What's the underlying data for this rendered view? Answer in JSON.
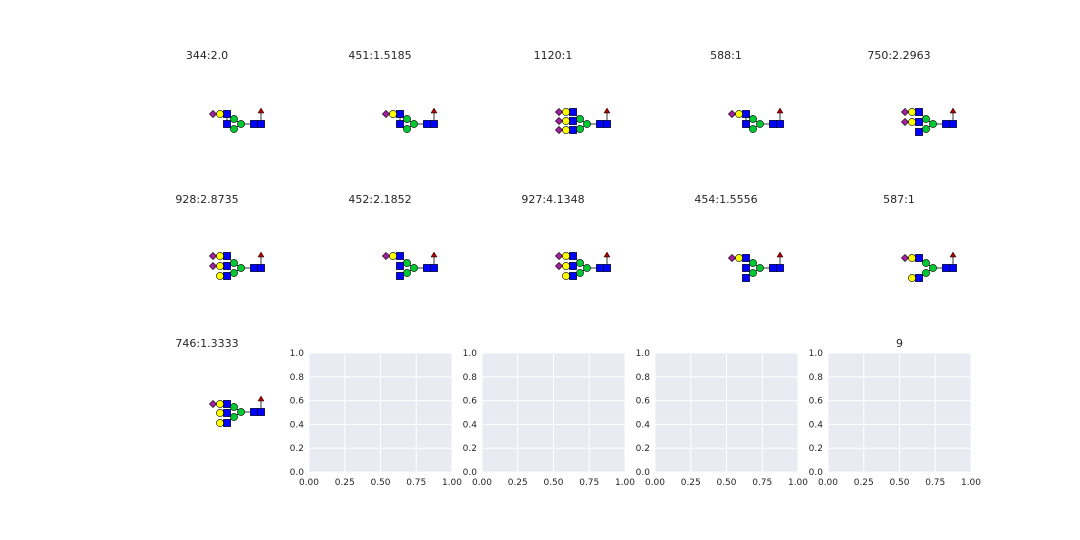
{
  "figure": {
    "panels": [
      {
        "title": "344:2.0",
        "glycan": "A"
      },
      {
        "title": "451:1.5185",
        "glycan": "A"
      },
      {
        "title": "1120:1",
        "glycan": "B"
      },
      {
        "title": "588:1",
        "glycan": "A"
      },
      {
        "title": "750:2.2963",
        "glycan": "C"
      },
      {
        "title": "928:2.8735",
        "glycan": "D"
      },
      {
        "title": "452:2.1852",
        "glycan": "E"
      },
      {
        "title": "927:4.1348",
        "glycan": "F"
      },
      {
        "title": "454:1.5556",
        "glycan": "G"
      },
      {
        "title": "587:1",
        "glycan": "H"
      },
      {
        "title": "746:1.3333",
        "glycan": "I"
      }
    ],
    "colors": {
      "sialic_acid": "#a020a0",
      "galactose": "#ffff00",
      "glcnac": "#0000ff",
      "mannose": "#00c832",
      "fucose_arrow": "#b00000",
      "axes_bg": "#eaeaf2",
      "grid": "#ffffff",
      "text": "#262626"
    }
  },
  "chart_data": [
    {
      "type": "scatter",
      "title": "",
      "xlabel": "",
      "ylabel": "",
      "xlim": [
        0,
        1
      ],
      "ylim": [
        0,
        1
      ],
      "grid": true,
      "xticks": [
        "0.00",
        "0.25",
        "0.50",
        "0.75",
        "1.00"
      ],
      "yticks": [
        "0.0",
        "0.2",
        "0.4",
        "0.6",
        "0.8",
        "1.0"
      ],
      "series": []
    },
    {
      "type": "scatter",
      "title": "",
      "xlabel": "",
      "ylabel": "",
      "xlim": [
        0,
        1
      ],
      "ylim": [
        0,
        1
      ],
      "grid": true,
      "xticks": [
        "0.00",
        "0.25",
        "0.50",
        "0.75",
        "1.00"
      ],
      "yticks": [
        "0.0",
        "0.2",
        "0.4",
        "0.6",
        "0.8",
        "1.0"
      ],
      "series": []
    },
    {
      "type": "scatter",
      "title": "",
      "xlabel": "",
      "ylabel": "",
      "xlim": [
        0,
        1
      ],
      "ylim": [
        0,
        1
      ],
      "grid": true,
      "xticks": [
        "0.00",
        "0.25",
        "0.50",
        "0.75",
        "1.00"
      ],
      "yticks": [
        "0.0",
        "0.2",
        "0.4",
        "0.6",
        "0.8",
        "1.0"
      ],
      "series": []
    },
    {
      "type": "scatter",
      "title": "9",
      "xlabel": "",
      "ylabel": "",
      "xlim": [
        0,
        1
      ],
      "ylim": [
        0,
        1
      ],
      "grid": true,
      "xticks": [
        "0.00",
        "0.25",
        "0.50",
        "0.75",
        "1.00"
      ],
      "yticks": [
        "0.0",
        "0.2",
        "0.4",
        "0.6",
        "0.8",
        "1.0"
      ],
      "series": []
    }
  ]
}
